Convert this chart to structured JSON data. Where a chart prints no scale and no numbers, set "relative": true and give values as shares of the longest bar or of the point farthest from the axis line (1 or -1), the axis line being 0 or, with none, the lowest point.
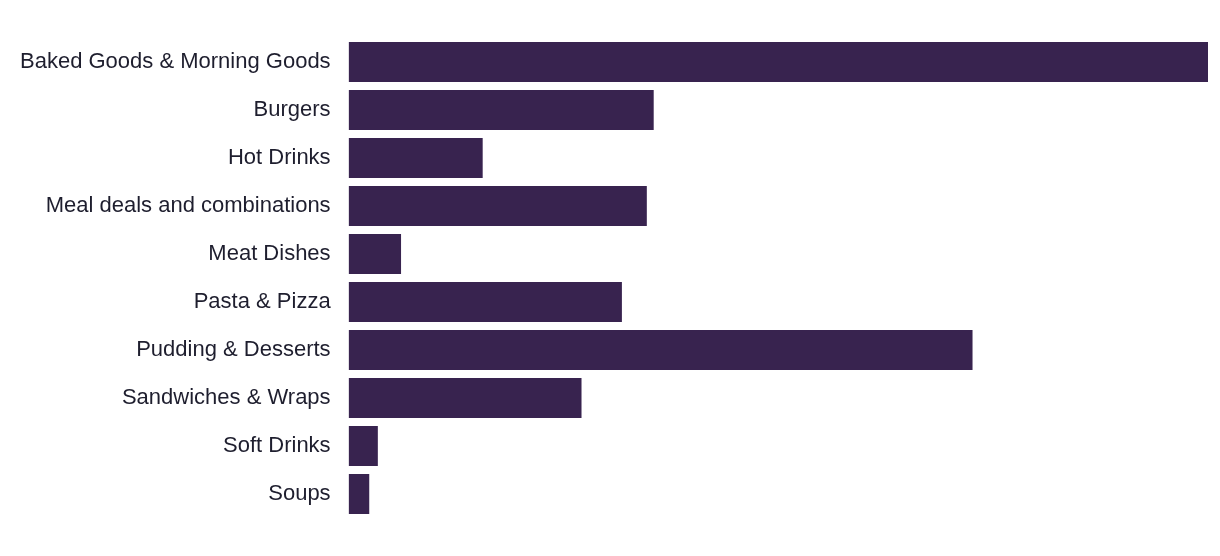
{
  "chart_data": {
    "type": "bar",
    "orientation": "horizontal",
    "relative": true,
    "categories": [
      "Baked Goods & Morning Goods",
      "Burgers",
      "Hot Drinks",
      "Meal deals and combinations",
      "Meat Dishes",
      "Pasta & Pizza",
      "Pudding & Desserts",
      "Sandwiches & Wraps",
      "Soft Drinks",
      "Soups"
    ],
    "values": [
      1,
      0.355,
      0.156,
      0.347,
      0.061,
      0.318,
      0.726,
      0.271,
      0.034,
      0.024
    ],
    "color": "#38234f"
  }
}
